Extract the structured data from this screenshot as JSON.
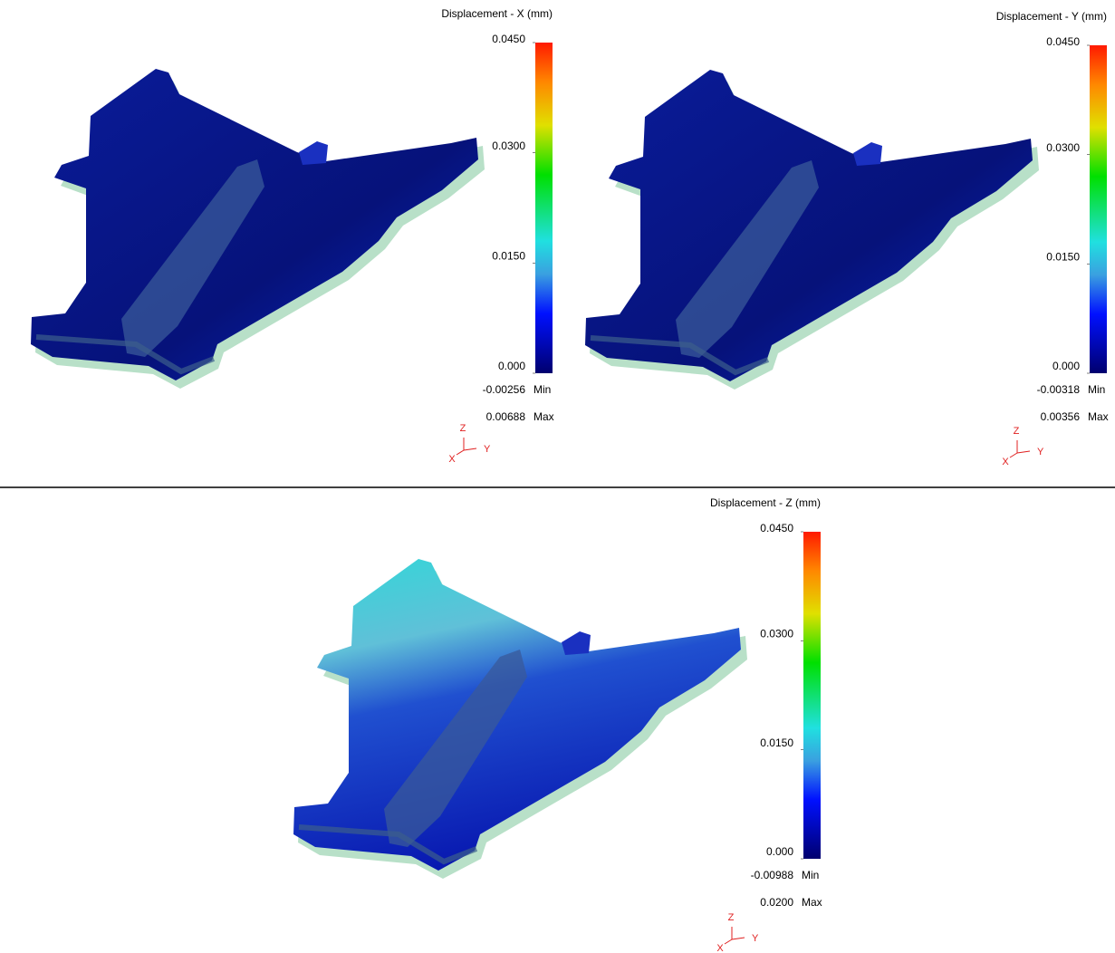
{
  "panels": [
    {
      "title": "Displacement - X (mm)",
      "ticks": [
        {
          "value": 0,
          "label": "0.000"
        },
        {
          "value": 0.015,
          "label": "0.0150"
        },
        {
          "value": 0.03,
          "label": "0.0300"
        },
        {
          "value": 0.045,
          "label": "0.0450"
        }
      ],
      "min": "-0.00256",
      "min_label": "Min",
      "max": "0.00688",
      "max_label": "Max",
      "axes": {
        "z": "Z",
        "x": "X",
        "y": "Y"
      }
    },
    {
      "title": "Displacement - Y (mm)",
      "ticks": [
        {
          "value": 0,
          "label": "0.000"
        },
        {
          "value": 0.015,
          "label": "0.0150"
        },
        {
          "value": 0.03,
          "label": "0.0300"
        },
        {
          "value": 0.045,
          "label": "0.0450"
        }
      ],
      "min": "-0.00318",
      "min_label": "Min",
      "max": "0.00356",
      "max_label": "Max",
      "axes": {
        "z": "Z",
        "x": "X",
        "y": "Y"
      }
    },
    {
      "title": "Displacement - Z (mm)",
      "ticks": [
        {
          "value": 0,
          "label": "0.000"
        },
        {
          "value": 0.015,
          "label": "0.0150"
        },
        {
          "value": 0.03,
          "label": "0.0300"
        },
        {
          "value": 0.045,
          "label": "0.0450"
        }
      ],
      "min": "-0.00988",
      "min_label": "Min",
      "max": "0.0200",
      "max_label": "Max",
      "axes": {
        "z": "Z",
        "x": "X",
        "y": "Y"
      }
    }
  ]
}
